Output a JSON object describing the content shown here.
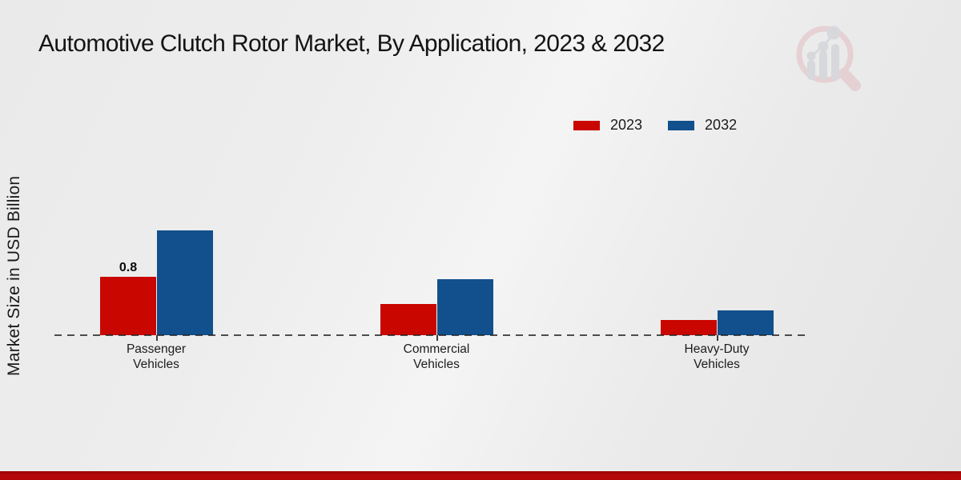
{
  "title": "Automotive Clutch Rotor Market, By Application, 2023 & 2032",
  "y_axis_label": "Market Size in USD Billion",
  "colors": {
    "series_2023": "#c90600",
    "series_2032": "#11508c",
    "footer_band": "#b40808",
    "axis_line": "#3c3c3c",
    "background": "#ececec"
  },
  "watermark_icon": "magnifier-bar-chart-logo",
  "chart_data": {
    "type": "bar",
    "title": "Automotive Clutch Rotor Market, By Application, 2023 & 2032",
    "xlabel": "",
    "ylabel": "Market Size in USD Billion",
    "categories": [
      "Passenger Vehicles",
      "Commercial Vehicles",
      "Heavy-Duty Vehicles"
    ],
    "series": [
      {
        "name": "2023",
        "color": "#c90600",
        "values": [
          0.8,
          0.43,
          0.21
        ]
      },
      {
        "name": "2032",
        "color": "#11508c",
        "values": [
          1.44,
          0.77,
          0.34
        ]
      }
    ],
    "data_labels": [
      {
        "series_index": 0,
        "category_index": 0,
        "text": "0.8"
      }
    ],
    "ylim": [
      0,
      1.6
    ],
    "grid": false,
    "axis_style": "dashed-zero-line-only",
    "legend_position": "top-right"
  }
}
